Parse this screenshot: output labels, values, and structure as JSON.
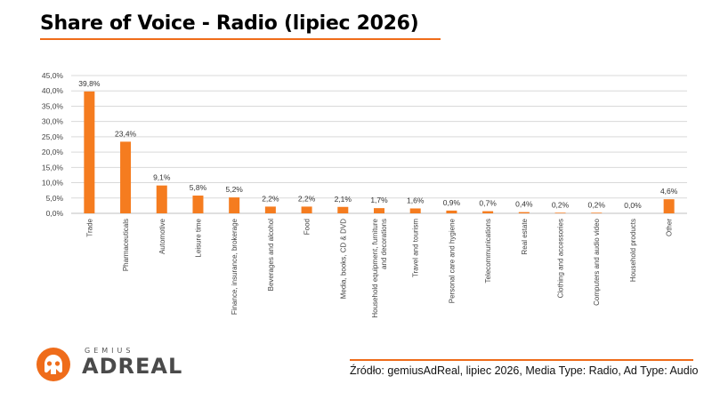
{
  "title": "Share of Voice - Radio (lipiec 2026)",
  "source": "Źródło: gemiusAdReal, lipiec 2026, Media Type: Radio, Ad Type: Audio",
  "logo": {
    "brand_top": "GEMIUS",
    "brand_main": "ADREAL",
    "icon": "adreal-logo-icon"
  },
  "colors": {
    "bar": "#f57c1f",
    "accent": "#ef6c1a",
    "grid": "#d9d9d9"
  },
  "chart_data": {
    "type": "bar",
    "categories": [
      "Trade",
      "Pharmaceuticals",
      "Automotive",
      "Leisure time",
      "Finance, insurance, brokerage",
      "Beverages and alcohol",
      "Food",
      "Media, books, CD & DVD",
      "Household equipment, furniture and decorations",
      "Travel and tourism",
      "Personal care and hygiene",
      "Telecommunications",
      "Real estate",
      "Clothing and accessories",
      "Computers and audio video",
      "Household products",
      "Other"
    ],
    "category_lines": [
      [
        "Trade"
      ],
      [
        "Pharmaceuticals"
      ],
      [
        "Automotive"
      ],
      [
        "Leisure time"
      ],
      [
        "Finance, insurance, brokerage"
      ],
      [
        "Beverages and alcohol"
      ],
      [
        "Food"
      ],
      [
        "Media, books, CD & DVD"
      ],
      [
        "Household equipment, furniture",
        "and decorations"
      ],
      [
        "Travel and tourism"
      ],
      [
        "Personal care and hygiene"
      ],
      [
        "Telecommunications"
      ],
      [
        "Real estate"
      ],
      [
        "Clothing and accessories"
      ],
      [
        "Computers and audio video"
      ],
      [
        "Household products"
      ],
      [
        "Other"
      ]
    ],
    "values": [
      39.8,
      23.4,
      9.1,
      5.8,
      5.2,
      2.2,
      2.2,
      2.1,
      1.7,
      1.6,
      0.9,
      0.7,
      0.4,
      0.2,
      0.2,
      0.0,
      4.6
    ],
    "value_labels": [
      "39,8%",
      "23,4%",
      "9,1%",
      "5,8%",
      "5,2%",
      "2,2%",
      "2,2%",
      "2,1%",
      "1,7%",
      "1,6%",
      "0,9%",
      "0,7%",
      "0,4%",
      "0,2%",
      "0,2%",
      "0,0%",
      "4,6%"
    ],
    "yticks": [
      0,
      5,
      10,
      15,
      20,
      25,
      30,
      35,
      40,
      45
    ],
    "ytick_labels": [
      "0,0%",
      "5,0%",
      "10,0%",
      "15,0%",
      "20,0%",
      "25,0%",
      "30,0%",
      "35,0%",
      "40,0%",
      "45,0%"
    ],
    "ylim": [
      0,
      45
    ],
    "grid": true,
    "legend": false,
    "xlabel": "",
    "ylabel": ""
  }
}
